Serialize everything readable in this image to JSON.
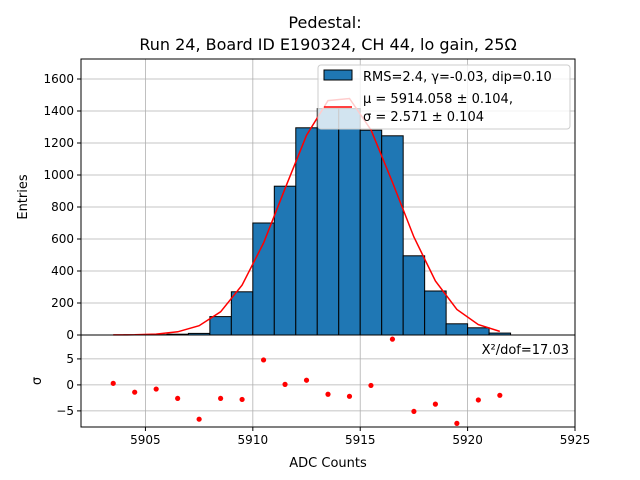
{
  "chart_data": {
    "type": "bar",
    "title_line1": "Pedestal:",
    "title_line2": "Run 24, Board ID E190324, CH 44, lo gain, 25Ω",
    "xlabel": "ADC Counts",
    "ylabel": "Entries",
    "residual_ylabel": "σ",
    "xlim": [
      5902,
      5925
    ],
    "ylim": [
      0,
      1725
    ],
    "residual_ylim": [
      -8.1,
      9.6
    ],
    "x_ticks": [
      5905,
      5910,
      5915,
      5920,
      5925
    ],
    "y_ticks": [
      0,
      200,
      400,
      600,
      800,
      1000,
      1200,
      1400,
      1600
    ],
    "residual_y_ticks": [
      -5,
      0,
      5
    ],
    "grid": true,
    "histogram": {
      "bin_width": 1,
      "bin_left_edges": [
        5904,
        5905,
        5906,
        5907,
        5908,
        5909,
        5910,
        5911,
        5912,
        5913,
        5914,
        5915,
        5916,
        5917,
        5918,
        5919,
        5920,
        5921
      ],
      "values": [
        1,
        2,
        5,
        10,
        115,
        270,
        700,
        930,
        1295,
        1415,
        1415,
        1280,
        1245,
        495,
        275,
        70,
        45,
        12
      ],
      "color": "#1f77b4"
    },
    "fit": {
      "mu": 5914.058,
      "sigma": 2.571,
      "amplitude": 1500,
      "x_start": 5903.5,
      "x_end": 5921.5,
      "color": "#ff0000"
    },
    "legend": {
      "placement": "top-right",
      "hist_label": "RMS=2.4, γ=-0.03, dip=0.10",
      "fit_label_line1": "μ = 5914.058 ± 0.104,",
      "fit_label_line2": "σ = 2.571 ± 0.104"
    },
    "residuals": {
      "x": [
        5903.5,
        5904.5,
        5905.5,
        5906.5,
        5907.5,
        5908.5,
        5909.5,
        5910.5,
        5911.5,
        5912.5,
        5913.5,
        5914.5,
        5915.5,
        5916.5,
        5917.5,
        5918.5,
        5919.5,
        5920.5,
        5921.5
      ],
      "y": [
        0.3,
        -1.4,
        -0.8,
        -2.6,
        -6.6,
        -2.6,
        -2.8,
        4.8,
        0.1,
        0.9,
        -1.8,
        -2.2,
        -0.1,
        8.8,
        -5.1,
        -3.7,
        -7.4,
        -2.9,
        -2.0
      ],
      "color": "#ff0000",
      "annotation": "X²/dof=17.03"
    }
  }
}
